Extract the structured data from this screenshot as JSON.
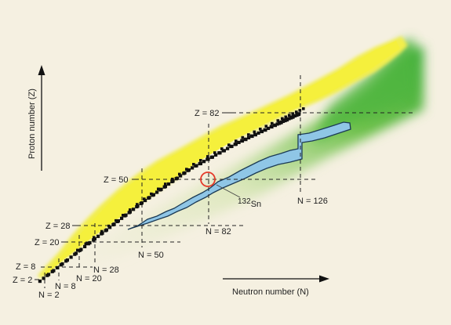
{
  "chart_data": {
    "type": "diagram",
    "xlabel": "Neutron number (N)",
    "ylabel": "Proton number (Z)",
    "proton_magic_labels": [
      "Z = 2",
      "Z = 8",
      "Z = 20",
      "Z = 28",
      "Z = 50",
      "Z = 82"
    ],
    "neutron_magic_labels": [
      "N = 2",
      "N = 8",
      "N = 20",
      "N = 28",
      "N = 50",
      "N = 82",
      "N = 126"
    ],
    "highlight": {
      "nucleus": "Sn",
      "mass_number": "132"
    },
    "colors": {
      "background": "#f5f0e1",
      "known_nuclei": "#f2ee4c",
      "predicted_region": "#3fae3b",
      "stable_nuclei": "#111111",
      "r_process_path": "#8fc6e6",
      "highlight_circle": "#e53a2a"
    }
  }
}
